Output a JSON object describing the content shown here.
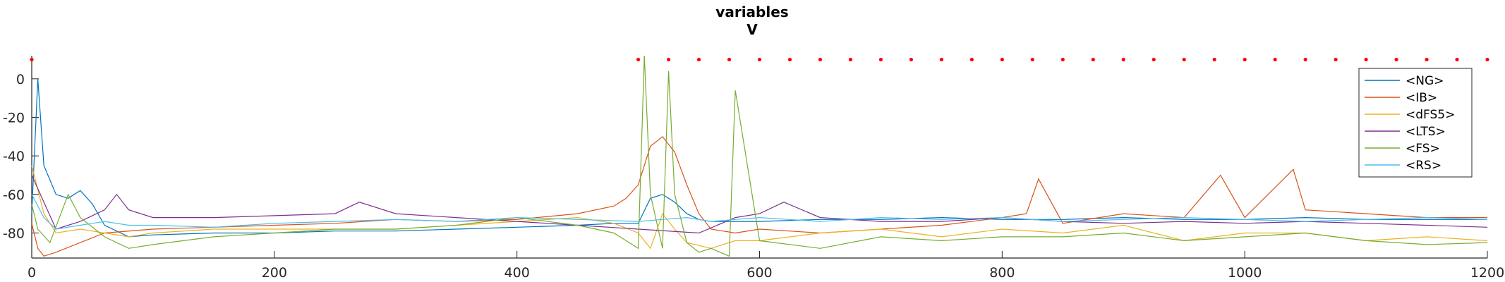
{
  "chart_data": {
    "type": "line",
    "title": "variables",
    "subtitle": "V",
    "xlabel": "",
    "ylabel": "",
    "xlim": [
      0,
      1200
    ],
    "ylim": [
      -93,
      12
    ],
    "xticks": [
      0,
      200,
      400,
      600,
      800,
      1000,
      1200
    ],
    "yticks": [
      0,
      -20,
      -40,
      -60,
      -80
    ],
    "xtick_labels": [
      "0",
      "200",
      "400",
      "600",
      "800",
      "1000",
      "1200"
    ],
    "ytick_labels": [
      "0",
      "-20",
      "-40",
      "-60",
      "-80"
    ],
    "grid": false,
    "legend_position": "top-right",
    "series": [
      {
        "name": "<NG>",
        "color": "#0072BD",
        "x": [
          0,
          5,
          10,
          20,
          30,
          40,
          50,
          60,
          80,
          100,
          150,
          200,
          250,
          300,
          350,
          400,
          450,
          480,
          500,
          510,
          520,
          530,
          540,
          550,
          560,
          580,
          600,
          650,
          700,
          750,
          800,
          850,
          900,
          950,
          1000,
          1050,
          1100,
          1150,
          1200
        ],
        "y": [
          -70,
          0,
          -45,
          -60,
          -62,
          -58,
          -65,
          -76,
          -82,
          -81,
          -80,
          -80,
          -79,
          -79,
          -78,
          -77,
          -76,
          -75,
          -75,
          -62,
          -60,
          -64,
          -70,
          -73,
          -74,
          -74,
          -74,
          -73,
          -73,
          -72,
          -73,
          -73,
          -72,
          -73,
          -73,
          -72,
          -73,
          -73,
          -73
        ]
      },
      {
        "name": "<IB>",
        "color": "#D95319",
        "x": [
          0,
          5,
          10,
          20,
          40,
          60,
          100,
          150,
          200,
          250,
          300,
          350,
          400,
          450,
          480,
          490,
          500,
          510,
          520,
          530,
          540,
          550,
          560,
          580,
          600,
          650,
          700,
          750,
          800,
          820,
          830,
          850,
          900,
          950,
          980,
          1000,
          1040,
          1050,
          1100,
          1150,
          1200
        ],
        "y": [
          -75,
          -88,
          -92,
          -90,
          -85,
          -80,
          -78,
          -77,
          -76,
          -75,
          -73,
          -74,
          -73,
          -70,
          -66,
          -62,
          -55,
          -35,
          -30,
          -38,
          -55,
          -70,
          -78,
          -80,
          -78,
          -80,
          -78,
          -76,
          -72,
          -70,
          -52,
          -75,
          -70,
          -72,
          -50,
          -72,
          -47,
          -68,
          -70,
          -72,
          -72
        ]
      },
      {
        "name": "<dFS5>",
        "color": "#EDB120",
        "x": [
          0,
          10,
          20,
          40,
          60,
          80,
          100,
          150,
          200,
          250,
          300,
          350,
          400,
          450,
          480,
          500,
          510,
          520,
          530,
          540,
          560,
          580,
          600,
          650,
          700,
          750,
          800,
          850,
          900,
          950,
          1000,
          1050,
          1100,
          1150,
          1200
        ],
        "y": [
          -45,
          -70,
          -80,
          -78,
          -80,
          -82,
          -80,
          -78,
          -78,
          -78,
          -78,
          -76,
          -74,
          -72,
          -75,
          -80,
          -88,
          -70,
          -78,
          -85,
          -88,
          -84,
          -84,
          -80,
          -78,
          -82,
          -78,
          -80,
          -76,
          -84,
          -80,
          -80,
          -84,
          -82,
          -84
        ]
      },
      {
        "name": "<LTS>",
        "color": "#7E2F8E",
        "x": [
          0,
          20,
          40,
          60,
          70,
          80,
          100,
          150,
          200,
          250,
          270,
          300,
          350,
          400,
          450,
          500,
          550,
          580,
          600,
          620,
          650,
          700,
          750,
          800,
          850,
          900,
          950,
          1000,
          1050,
          1100,
          1150,
          1200
        ],
        "y": [
          -50,
          -78,
          -74,
          -68,
          -60,
          -68,
          -72,
          -72,
          -71,
          -70,
          -64,
          -70,
          -72,
          -74,
          -76,
          -78,
          -80,
          -72,
          -70,
          -64,
          -72,
          -74,
          -74,
          -72,
          -74,
          -75,
          -74,
          -75,
          -74,
          -75,
          -76,
          -77
        ]
      },
      {
        "name": "<FS>",
        "color": "#77AC30",
        "x": [
          0,
          5,
          15,
          30,
          40,
          60,
          80,
          100,
          150,
          200,
          250,
          300,
          350,
          400,
          450,
          480,
          500,
          505,
          510,
          520,
          525,
          530,
          540,
          550,
          560,
          575,
          580,
          600,
          650,
          700,
          750,
          800,
          850,
          900,
          950,
          1000,
          1050,
          1100,
          1150,
          1200
        ],
        "y": [
          -65,
          -78,
          -85,
          -60,
          -72,
          -82,
          -88,
          -86,
          -82,
          -80,
          -78,
          -78,
          -76,
          -72,
          -76,
          -80,
          -88,
          12,
          -60,
          -88,
          4,
          -60,
          -85,
          -90,
          -88,
          -92,
          -6,
          -84,
          -88,
          -82,
          -84,
          -82,
          -82,
          -80,
          -84,
          -82,
          -80,
          -84,
          -86,
          -85
        ]
      },
      {
        "name": "<RS>",
        "color": "#4DBEEE",
        "x": [
          0,
          10,
          20,
          40,
          60,
          80,
          100,
          150,
          200,
          250,
          300,
          350,
          400,
          450,
          500,
          520,
          540,
          560,
          580,
          600,
          650,
          700,
          750,
          800,
          850,
          900,
          950,
          1000,
          1050,
          1100,
          1150,
          1200
        ],
        "y": [
          -60,
          -72,
          -78,
          -76,
          -74,
          -76,
          -76,
          -77,
          -75,
          -74,
          -73,
          -74,
          -72,
          -73,
          -74,
          -73,
          -72,
          -74,
          -73,
          -72,
          -74,
          -72,
          -73,
          -72,
          -74,
          -73,
          -72,
          -73,
          -74,
          -73,
          -72,
          -73
        ]
      }
    ],
    "markers": {
      "name": "spike-markers",
      "color": "#FF0000",
      "y": 10,
      "x": [
        0,
        500,
        525,
        550,
        575,
        600,
        625,
        650,
        675,
        700,
        725,
        750,
        775,
        800,
        825,
        850,
        875,
        900,
        925,
        950,
        975,
        1000,
        1025,
        1050,
        1075,
        1100,
        1125,
        1150,
        1175,
        1200
      ]
    }
  }
}
